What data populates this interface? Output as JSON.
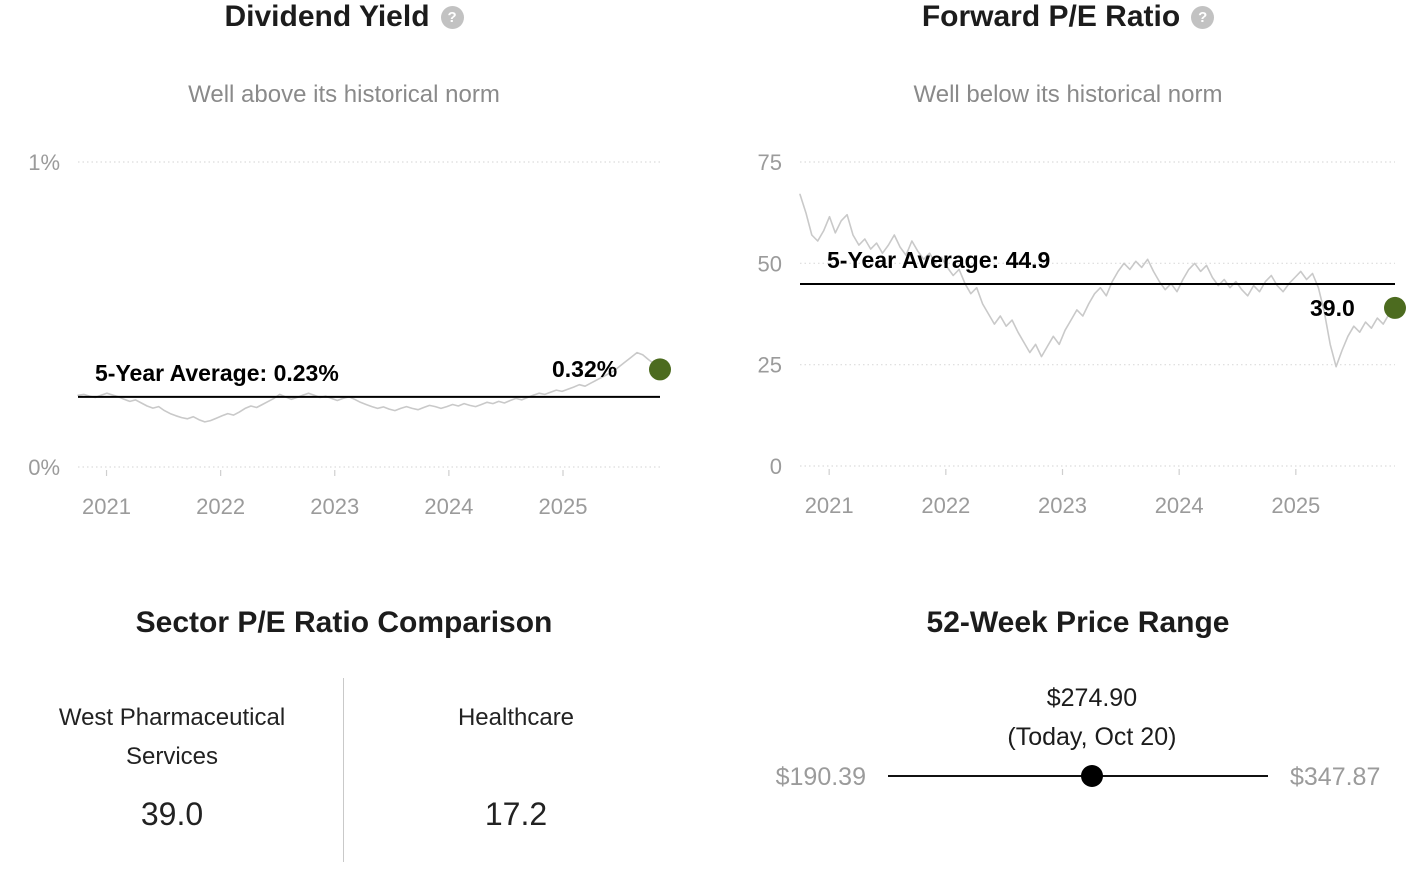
{
  "colors": {
    "accent_green": "#4c6b1f",
    "series_line": "#c9c9c9",
    "average_line": "#000000",
    "slider_dot": "#000000"
  },
  "icons": {
    "help_glyph": "?"
  },
  "chart_data": [
    {
      "type": "line",
      "title": "Dividend Yield",
      "subtitle": "Well above its historical norm",
      "ylim": [
        0,
        1
      ],
      "xlim": [
        2020.75,
        2025.85
      ],
      "grid": true,
      "yticks": [
        {
          "value": 1,
          "label": "1%"
        },
        {
          "value": 0,
          "label": "0%"
        }
      ],
      "xticks": [
        {
          "value": 2021,
          "label": "2021"
        },
        {
          "value": 2022,
          "label": "2022"
        },
        {
          "value": 2023,
          "label": "2023"
        },
        {
          "value": 2024,
          "label": "2024"
        },
        {
          "value": 2025,
          "label": "2025"
        }
      ],
      "average": {
        "value": 0.23,
        "label": "5-Year Average: 0.23%"
      },
      "current": {
        "value": 0.32,
        "label": "0.32%"
      },
      "series": [
        0.235,
        0.238,
        0.232,
        0.228,
        0.235,
        0.242,
        0.236,
        0.23,
        0.222,
        0.215,
        0.22,
        0.21,
        0.2,
        0.193,
        0.198,
        0.185,
        0.175,
        0.168,
        0.162,
        0.158,
        0.165,
        0.155,
        0.148,
        0.152,
        0.16,
        0.168,
        0.175,
        0.17,
        0.18,
        0.192,
        0.2,
        0.195,
        0.205,
        0.215,
        0.225,
        0.238,
        0.23,
        0.222,
        0.228,
        0.235,
        0.242,
        0.235,
        0.228,
        0.232,
        0.225,
        0.218,
        0.225,
        0.23,
        0.222,
        0.212,
        0.205,
        0.198,
        0.192,
        0.197,
        0.19,
        0.185,
        0.192,
        0.198,
        0.192,
        0.188,
        0.195,
        0.202,
        0.198,
        0.192,
        0.198,
        0.205,
        0.2,
        0.208,
        0.202,
        0.198,
        0.205,
        0.212,
        0.208,
        0.215,
        0.21,
        0.218,
        0.225,
        0.22,
        0.228,
        0.235,
        0.242,
        0.238,
        0.245,
        0.252,
        0.248,
        0.255,
        0.262,
        0.27,
        0.265,
        0.275,
        0.285,
        0.295,
        0.305,
        0.315,
        0.33,
        0.345,
        0.36,
        0.375,
        0.368,
        0.352,
        0.338,
        0.32
      ]
    },
    {
      "type": "line",
      "title": "Forward P/E Ratio",
      "subtitle": "Well below its historical norm",
      "ylim": [
        0,
        75
      ],
      "xlim": [
        2020.75,
        2025.85
      ],
      "grid": true,
      "yticks": [
        {
          "value": 75,
          "label": "75"
        },
        {
          "value": 50,
          "label": "50"
        },
        {
          "value": 25,
          "label": "25"
        },
        {
          "value": 0,
          "label": "0"
        }
      ],
      "xticks": [
        {
          "value": 2021,
          "label": "2021"
        },
        {
          "value": 2022,
          "label": "2022"
        },
        {
          "value": 2023,
          "label": "2023"
        },
        {
          "value": 2024,
          "label": "2024"
        },
        {
          "value": 2025,
          "label": "2025"
        }
      ],
      "average": {
        "value": 44.9,
        "label": "5-Year Average: 44.9"
      },
      "current": {
        "value": 39.0,
        "label": "39.0"
      },
      "series": [
        67.0,
        62.5,
        57.0,
        55.5,
        58.0,
        61.5,
        57.5,
        60.5,
        62.0,
        57.0,
        54.5,
        56.0,
        53.5,
        55.0,
        52.5,
        54.5,
        57.0,
        54.0,
        52.0,
        55.5,
        53.0,
        51.0,
        52.5,
        50.0,
        51.5,
        49.0,
        47.0,
        48.5,
        45.0,
        42.5,
        44.0,
        40.0,
        37.5,
        35.0,
        37.0,
        34.5,
        36.0,
        33.0,
        30.5,
        28.0,
        30.0,
        27.0,
        29.5,
        32.0,
        30.0,
        33.5,
        36.0,
        38.5,
        37.0,
        40.0,
        42.5,
        44.0,
        42.0,
        45.5,
        48.0,
        50.0,
        48.5,
        50.5,
        49.0,
        51.0,
        48.0,
        45.5,
        43.5,
        45.0,
        43.0,
        46.0,
        48.5,
        50.0,
        48.0,
        49.5,
        46.5,
        44.5,
        46.0,
        44.0,
        45.5,
        43.5,
        42.0,
        44.5,
        43.0,
        45.5,
        47.0,
        44.5,
        43.0,
        45.0,
        46.5,
        48.0,
        46.0,
        47.5,
        44.0,
        38.0,
        30.0,
        24.5,
        28.5,
        32.0,
        34.5,
        33.0,
        35.5,
        34.0,
        36.5,
        35.0,
        37.5,
        39.0
      ]
    },
    {
      "type": "table",
      "title": "Sector P/E Ratio Comparison",
      "columns": [
        {
          "label": "West Pharmaceutical Services",
          "value": "39.0"
        },
        {
          "label": "Healthcare",
          "value": "17.2"
        }
      ]
    },
    {
      "type": "range",
      "title": "52-Week Price Range",
      "current": "$274.90",
      "current_caption": "(Today, Oct 20)",
      "low": "$190.39",
      "high": "$347.87"
    }
  ]
}
